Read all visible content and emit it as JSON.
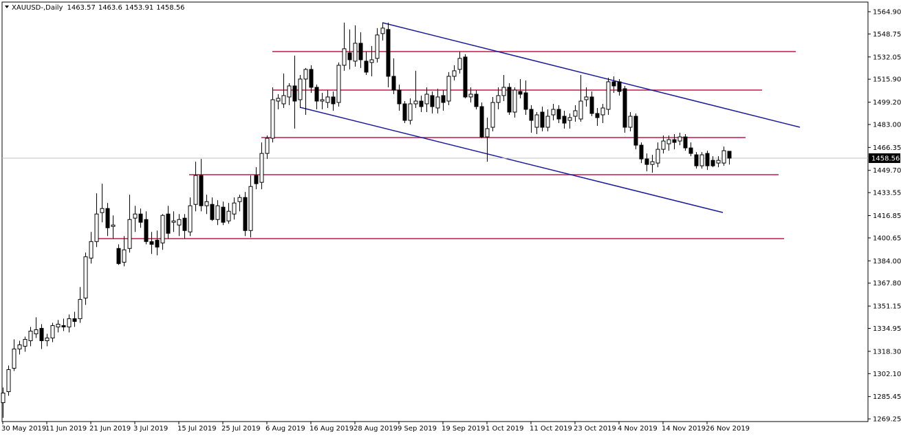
{
  "chart_data": {
    "type": "candlestick",
    "title": "XAUUSD-,Daily",
    "up_color": "#ffffff",
    "down_color": "#000000",
    "edge_color": "#000000",
    "ylim": [
      1267.3,
      1571.9
    ],
    "yticks": [
      {
        "value": 1564.9,
        "label": "1564.90"
      },
      {
        "value": 1548.75,
        "label": "1548.75"
      },
      {
        "value": 1532.05,
        "label": "1532.05"
      },
      {
        "value": 1515.9,
        "label": "1515.90"
      },
      {
        "value": 1499.2,
        "label": "1499.20"
      },
      {
        "value": 1483,
        "label": "1483.00"
      },
      {
        "value": 1466.35,
        "label": "1466.35"
      },
      {
        "value": 1449.7,
        "label": "1449.70"
      },
      {
        "value": 1433.55,
        "label": "1433.55"
      },
      {
        "value": 1416.85,
        "label": "1416.85"
      },
      {
        "value": 1400.65,
        "label": "1400.65"
      },
      {
        "value": 1384,
        "label": "1384.00"
      },
      {
        "value": 1367.8,
        "label": "1367.80"
      },
      {
        "value": 1351.15,
        "label": "1351.15"
      },
      {
        "value": 1334.95,
        "label": "1334.95"
      },
      {
        "value": 1318.3,
        "label": "1318.30"
      },
      {
        "value": 1302.1,
        "label": "1302.10"
      },
      {
        "value": 1285.45,
        "label": "1285.45"
      },
      {
        "value": 1269.25,
        "label": "1269.25"
      }
    ],
    "categories": [
      "30 May 2019",
      null,
      null,
      null,
      null,
      null,
      null,
      null,
      "11 Jun 2019",
      null,
      null,
      null,
      null,
      null,
      null,
      null,
      "21 Jun 2019",
      null,
      null,
      null,
      null,
      null,
      null,
      null,
      "3 Jul 2019",
      null,
      null,
      null,
      null,
      null,
      null,
      null,
      "15 Jul 2019",
      null,
      null,
      null,
      null,
      null,
      null,
      null,
      "25 Jul 2019",
      null,
      null,
      null,
      null,
      null,
      null,
      null,
      "6 Aug 2019",
      null,
      null,
      null,
      null,
      null,
      null,
      null,
      "16 Aug 2019",
      null,
      null,
      null,
      null,
      null,
      null,
      null,
      "28 Aug 2019",
      null,
      null,
      null,
      null,
      null,
      null,
      null,
      "9 Sep 2019",
      null,
      null,
      null,
      null,
      null,
      null,
      null,
      "19 Sep 2019",
      null,
      null,
      null,
      null,
      null,
      null,
      null,
      "1 Oct 2019",
      null,
      null,
      null,
      null,
      null,
      null,
      null,
      "11 Oct 2019",
      null,
      null,
      null,
      null,
      null,
      null,
      null,
      "23 Oct 2019",
      null,
      null,
      null,
      null,
      null,
      null,
      null,
      "4 Nov 2019",
      null,
      null,
      null,
      null,
      null,
      null,
      null,
      "14 Nov 2019",
      null,
      null,
      null,
      null,
      null,
      null,
      null,
      "26 Nov 2019",
      null,
      null,
      null,
      null
    ],
    "open": [
      1281,
      1289,
      1306,
      1320,
      1322,
      1326,
      1331,
      1335,
      1326,
      1328,
      1336,
      1337,
      1336,
      1342,
      1342,
      1357,
      1386,
      1398,
      1419,
      1422,
      1409,
      1393,
      1383,
      1393,
      1415,
      1418,
      1414,
      1398,
      1399,
      1397,
      1418,
      1412,
      1410,
      1415,
      1405,
      1425,
      1446,
      1424,
      1425,
      1414,
      1423,
      1413,
      1418,
      1427,
      1430,
      1406,
      1446,
      1441,
      1462,
      1473,
      1500,
      1498,
      1503,
      1511,
      1501,
      1516,
      1523,
      1510,
      1500,
      1499,
      1503,
      1499,
      1526,
      1535,
      1529,
      1542,
      1529,
      1528,
      1531,
      1549,
      1552,
      1518,
      1508,
      1498,
      1486,
      1498,
      1500,
      1498,
      1504,
      1495,
      1504,
      1500,
      1518,
      1523,
      1532,
      1503,
      1505,
      1496,
      1474,
      1481,
      1499,
      1504,
      1510,
      1492,
      1507,
      1506,
      1494,
      1481,
      1492,
      1481,
      1490,
      1494,
      1489,
      1486,
      1489,
      1487,
      1501,
      1503,
      1491,
      1490,
      1494,
      1514,
      1514,
      1509,
      1481,
      1489,
      1468,
      1458,
      1454,
      1455,
      1465,
      1469,
      1472,
      1471,
      1474,
      1466,
      1461,
      1453,
      1462,
      1457,
      1455,
      1455,
      1463.57
    ],
    "high": [
      1292,
      1308,
      1327,
      1326,
      1329,
      1336,
      1343,
      1338,
      1331,
      1339,
      1341,
      1342,
      1345,
      1347,
      1365,
      1390,
      1405,
      1433,
      1440,
      1426,
      1417,
      1396,
      1402,
      1432,
      1424,
      1422,
      1420,
      1405,
      1406,
      1418,
      1424,
      1420,
      1418,
      1418,
      1430,
      1456,
      1458,
      1432,
      1430,
      1428,
      1427,
      1426,
      1430,
      1432,
      1434,
      1446,
      1452,
      1470,
      1475,
      1510,
      1505,
      1520,
      1513,
      1533,
      1519,
      1524,
      1526,
      1512,
      1506,
      1508,
      1507,
      1528,
      1557,
      1552,
      1555,
      1550,
      1536,
      1540,
      1553,
      1557,
      1557,
      1531,
      1512,
      1500,
      1502,
      1522,
      1504,
      1510,
      1507,
      1509,
      1508,
      1521,
      1526,
      1536,
      1534,
      1510,
      1508,
      1499,
      1488,
      1503,
      1510,
      1519,
      1513,
      1510,
      1516,
      1515,
      1497,
      1492,
      1496,
      1494,
      1498,
      1497,
      1493,
      1491,
      1497,
      1519,
      1510,
      1507,
      1495,
      1498,
      1517,
      1518,
      1516,
      1511,
      1492,
      1491,
      1470,
      1462,
      1461,
      1470,
      1475,
      1475,
      1476,
      1477,
      1476,
      1470,
      1463,
      1463,
      1464,
      1460,
      1460,
      1467,
      1463.6
    ],
    "low": [
      1270,
      1286,
      1304,
      1316,
      1318,
      1322,
      1328,
      1320,
      1322,
      1325,
      1332,
      1333,
      1332,
      1336,
      1339,
      1352,
      1382,
      1394,
      1412,
      1402,
      1400,
      1381,
      1380,
      1390,
      1405,
      1408,
      1396,
      1389,
      1388,
      1392,
      1400,
      1405,
      1402,
      1400,
      1402,
      1420,
      1420,
      1418,
      1413,
      1410,
      1410,
      1411,
      1414,
      1420,
      1402,
      1401,
      1436,
      1436,
      1458,
      1470,
      1494,
      1495,
      1497,
      1480,
      1495,
      1490,
      1506,
      1494,
      1494,
      1495,
      1493,
      1496,
      1522,
      1523,
      1525,
      1524,
      1519,
      1518,
      1528,
      1544,
      1510,
      1505,
      1493,
      1484,
      1483,
      1495,
      1492,
      1492,
      1491,
      1491,
      1493,
      1497,
      1515,
      1520,
      1502,
      1499,
      1494,
      1473,
      1456,
      1478,
      1494,
      1500,
      1490,
      1488,
      1502,
      1490,
      1477,
      1476,
      1478,
      1478,
      1486,
      1484,
      1480,
      1480,
      1485,
      1485,
      1496,
      1489,
      1482,
      1484,
      1490,
      1506,
      1504,
      1477,
      1478,
      1465,
      1455,
      1449,
      1448,
      1452,
      1462,
      1464,
      1465,
      1468,
      1464,
      1460,
      1451,
      1451,
      1450,
      1452,
      1452,
      1453,
      1453.91
    ],
    "close": [
      1288,
      1305,
      1320,
      1323,
      1327,
      1333,
      1334,
      1326,
      1328,
      1337,
      1338,
      1336,
      1342,
      1340,
      1356,
      1387,
      1398,
      1418,
      1422,
      1408,
      1410,
      1382,
      1392,
      1414,
      1418,
      1412,
      1398,
      1396,
      1394,
      1417,
      1404,
      1413,
      1414,
      1406,
      1424,
      1446,
      1424,
      1427,
      1414,
      1424,
      1412,
      1420,
      1426,
      1430,
      1406,
      1438,
      1440,
      1462,
      1473,
      1501,
      1502,
      1504,
      1511,
      1500,
      1516,
      1523,
      1510,
      1500,
      1501,
      1503,
      1498,
      1526,
      1538,
      1530,
      1542,
      1530,
      1521,
      1530,
      1548,
      1553,
      1518,
      1508,
      1498,
      1486,
      1498,
      1500,
      1496,
      1505,
      1496,
      1503,
      1499,
      1518,
      1522,
      1531,
      1503,
      1505,
      1496,
      1474,
      1480,
      1499,
      1504,
      1510,
      1492,
      1508,
      1505,
      1494,
      1486,
      1490,
      1481,
      1489,
      1494,
      1487,
      1484,
      1488,
      1493,
      1500,
      1503,
      1491,
      1488,
      1495,
      1514,
      1511,
      1507,
      1481,
      1489,
      1468,
      1458,
      1454,
      1456,
      1465,
      1471,
      1472,
      1470,
      1474,
      1466,
      1462,
      1453,
      1461,
      1453,
      1453,
      1457,
      1464,
      1458.56
    ]
  }
}
